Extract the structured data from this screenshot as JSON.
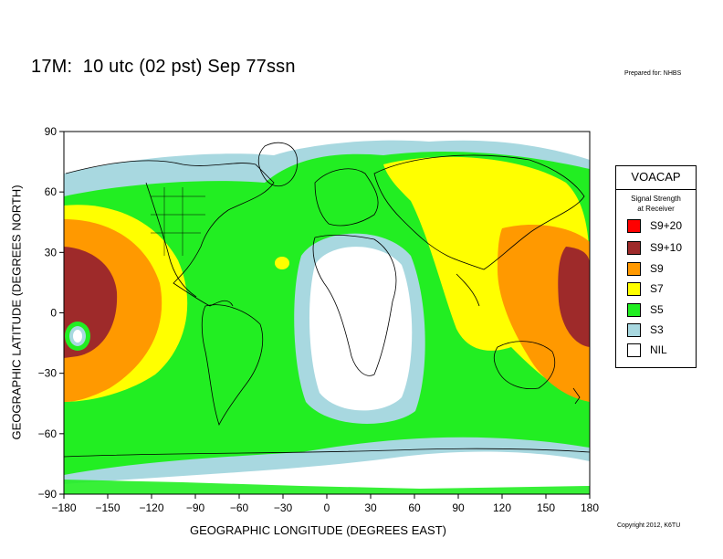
{
  "title": "17M:  10 utc (02 pst) Sep 77ssn",
  "prepared_for": "Prepared for: NHBS",
  "copyright": "Copyright 2012, K6TU",
  "axes": {
    "xlabel": "GEOGRAPHIC LONGITUDE (DEGREES EAST)",
    "ylabel": "GEOGRAPHIC LATITUDE (DEGREES NORTH)",
    "xticks": [
      "−180",
      "−150",
      "−120",
      "−90",
      "−60",
      "−30",
      "0",
      "30",
      "60",
      "90",
      "120",
      "150",
      "180"
    ],
    "yticks": [
      "90",
      "60",
      "30",
      "0",
      "−30",
      "−60",
      "−90"
    ]
  },
  "legend": {
    "title": "VOACAP",
    "subtitle_line1": "Signal Strength",
    "subtitle_line2": "at Receiver",
    "items": [
      {
        "label": "S9+20",
        "color": "#ff0000"
      },
      {
        "label": "S9+10",
        "color": "#9e2a2a"
      },
      {
        "label": "S9",
        "color": "#ff9900"
      },
      {
        "label": "S7",
        "color": "#ffff00"
      },
      {
        "label": "S5",
        "color": "#22ee22"
      },
      {
        "label": "S3",
        "color": "#a8d8e0"
      },
      {
        "label": "NIL",
        "color": "#ffffff"
      }
    ]
  },
  "colors": {
    "s9_10": "#9e2a2a",
    "s9": "#ff9900",
    "s7": "#ffff00",
    "s5": "#22ee22",
    "s3": "#a8d8e0",
    "nil": "#ffffff",
    "coast": "#000000"
  }
}
